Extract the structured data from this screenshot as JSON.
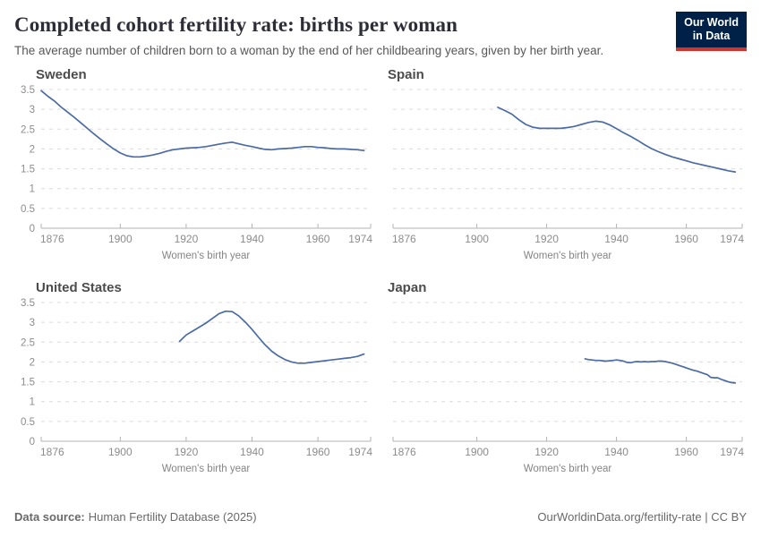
{
  "header": {
    "title": "Completed cohort fertility rate: births per woman",
    "subtitle": "The average number of children born to a woman by the end of her childbearing years, given by her birth year.",
    "logo": {
      "line1": "Our World",
      "line2": "in Data",
      "bg_color": "#002147",
      "accent_color": "#d0342c"
    }
  },
  "footer": {
    "datasource_label": "Data source:",
    "datasource_value": "Human Fertility Database (2025)",
    "link_text": "OurWorldinData.org/fertility-rate",
    "license_suffix": " | CC BY"
  },
  "theme": {
    "gridline_color": "#dcdcdc",
    "axis_color": "#b3b3b3",
    "tick_label_color": "#8c8c8c",
    "axis_title_color": "#858585",
    "panel_title_color": "#4c4c4c",
    "line_color": "#4b6ba5"
  },
  "chart_data": [
    {
      "type": "line",
      "title": "Sweden",
      "xlabel": "Women's birth year",
      "ylabel": "",
      "x_ticks": [
        1876,
        1900,
        1920,
        1940,
        1960,
        1974
      ],
      "y_ticks": [
        0,
        0.5,
        1,
        1.5,
        2,
        2.5,
        3,
        3.5
      ],
      "xlim": [
        1876,
        1976
      ],
      "ylim": [
        0,
        3.5
      ],
      "grid": true,
      "show_y_tick_labels": true,
      "line_color": "#4b6ba5",
      "series": [
        {
          "name": "Sweden",
          "points": [
            [
              1876,
              3.47
            ],
            [
              1878,
              3.33
            ],
            [
              1880,
              3.21
            ],
            [
              1882,
              3.06
            ],
            [
              1884,
              2.93
            ],
            [
              1886,
              2.8
            ],
            [
              1888,
              2.66
            ],
            [
              1890,
              2.52
            ],
            [
              1892,
              2.38
            ],
            [
              1894,
              2.25
            ],
            [
              1896,
              2.12
            ],
            [
              1898,
              2.0
            ],
            [
              1900,
              1.9
            ],
            [
              1902,
              1.83
            ],
            [
              1904,
              1.8
            ],
            [
              1906,
              1.8
            ],
            [
              1908,
              1.82
            ],
            [
              1910,
              1.85
            ],
            [
              1912,
              1.89
            ],
            [
              1914,
              1.94
            ],
            [
              1916,
              1.98
            ],
            [
              1918,
              2.0
            ],
            [
              1920,
              2.02
            ],
            [
              1922,
              2.03
            ],
            [
              1924,
              2.04
            ],
            [
              1926,
              2.06
            ],
            [
              1928,
              2.09
            ],
            [
              1930,
              2.12
            ],
            [
              1932,
              2.15
            ],
            [
              1934,
              2.17
            ],
            [
              1936,
              2.13
            ],
            [
              1938,
              2.09
            ],
            [
              1940,
              2.06
            ],
            [
              1942,
              2.02
            ],
            [
              1944,
              1.99
            ],
            [
              1946,
              1.98
            ],
            [
              1948,
              2.0
            ],
            [
              1950,
              2.01
            ],
            [
              1952,
              2.02
            ],
            [
              1954,
              2.04
            ],
            [
              1956,
              2.06
            ],
            [
              1958,
              2.06
            ],
            [
              1960,
              2.04
            ],
            [
              1962,
              2.03
            ],
            [
              1964,
              2.01
            ],
            [
              1966,
              2.0
            ],
            [
              1968,
              2.0
            ],
            [
              1970,
              1.99
            ],
            [
              1972,
              1.98
            ],
            [
              1974,
              1.96
            ]
          ]
        }
      ]
    },
    {
      "type": "line",
      "title": "Spain",
      "xlabel": "Women's birth year",
      "ylabel": "",
      "x_ticks": [
        1876,
        1900,
        1920,
        1940,
        1960,
        1974
      ],
      "y_ticks": [
        0,
        0.5,
        1,
        1.5,
        2,
        2.5,
        3,
        3.5
      ],
      "xlim": [
        1876,
        1976
      ],
      "ylim": [
        0,
        3.5
      ],
      "grid": true,
      "show_y_tick_labels": false,
      "line_color": "#4b6ba5",
      "series": [
        {
          "name": "Spain",
          "points": [
            [
              1906,
              3.05
            ],
            [
              1908,
              2.97
            ],
            [
              1910,
              2.88
            ],
            [
              1912,
              2.74
            ],
            [
              1914,
              2.62
            ],
            [
              1916,
              2.55
            ],
            [
              1918,
              2.52
            ],
            [
              1920,
              2.52
            ],
            [
              1922,
              2.52
            ],
            [
              1924,
              2.52
            ],
            [
              1926,
              2.54
            ],
            [
              1928,
              2.57
            ],
            [
              1930,
              2.62
            ],
            [
              1932,
              2.67
            ],
            [
              1934,
              2.7
            ],
            [
              1936,
              2.68
            ],
            [
              1938,
              2.61
            ],
            [
              1940,
              2.51
            ],
            [
              1942,
              2.41
            ],
            [
              1944,
              2.32
            ],
            [
              1946,
              2.22
            ],
            [
              1948,
              2.11
            ],
            [
              1950,
              2.01
            ],
            [
              1952,
              1.93
            ],
            [
              1954,
              1.86
            ],
            [
              1956,
              1.8
            ],
            [
              1958,
              1.75
            ],
            [
              1960,
              1.7
            ],
            [
              1962,
              1.65
            ],
            [
              1964,
              1.61
            ],
            [
              1966,
              1.57
            ],
            [
              1968,
              1.53
            ],
            [
              1970,
              1.49
            ],
            [
              1972,
              1.45
            ],
            [
              1974,
              1.42
            ]
          ]
        }
      ]
    },
    {
      "type": "line",
      "title": "United States",
      "xlabel": "Women's birth year",
      "ylabel": "",
      "x_ticks": [
        1876,
        1900,
        1920,
        1940,
        1960,
        1974
      ],
      "y_ticks": [
        0,
        0.5,
        1,
        1.5,
        2,
        2.5,
        3,
        3.5
      ],
      "xlim": [
        1876,
        1976
      ],
      "ylim": [
        0,
        3.5
      ],
      "grid": true,
      "show_y_tick_labels": true,
      "line_color": "#4b6ba5",
      "series": [
        {
          "name": "United States",
          "points": [
            [
              1918,
              2.52
            ],
            [
              1920,
              2.68
            ],
            [
              1922,
              2.78
            ],
            [
              1924,
              2.88
            ],
            [
              1926,
              2.98
            ],
            [
              1928,
              3.1
            ],
            [
              1930,
              3.22
            ],
            [
              1932,
              3.28
            ],
            [
              1934,
              3.27
            ],
            [
              1936,
              3.16
            ],
            [
              1938,
              3.0
            ],
            [
              1940,
              2.82
            ],
            [
              1942,
              2.62
            ],
            [
              1944,
              2.43
            ],
            [
              1946,
              2.27
            ],
            [
              1948,
              2.15
            ],
            [
              1950,
              2.06
            ],
            [
              1952,
              2.0
            ],
            [
              1954,
              1.97
            ],
            [
              1956,
              1.97
            ],
            [
              1958,
              1.99
            ],
            [
              1960,
              2.01
            ],
            [
              1962,
              2.03
            ],
            [
              1964,
              2.05
            ],
            [
              1966,
              2.07
            ],
            [
              1968,
              2.09
            ],
            [
              1970,
              2.11
            ],
            [
              1972,
              2.14
            ],
            [
              1974,
              2.2
            ]
          ]
        }
      ]
    },
    {
      "type": "line",
      "title": "Japan",
      "xlabel": "Women's birth year",
      "ylabel": "",
      "x_ticks": [
        1876,
        1900,
        1920,
        1940,
        1960,
        1974
      ],
      "y_ticks": [
        0,
        0.5,
        1,
        1.5,
        2,
        2.5,
        3,
        3.5
      ],
      "xlim": [
        1876,
        1976
      ],
      "ylim": [
        0,
        3.5
      ],
      "grid": true,
      "show_y_tick_labels": false,
      "line_color": "#4b6ba5",
      "series": [
        {
          "name": "Japan",
          "points": [
            [
              1931,
              2.08
            ],
            [
              1932,
              2.06
            ],
            [
              1933,
              2.05
            ],
            [
              1934,
              2.04
            ],
            [
              1935,
              2.04
            ],
            [
              1936,
              2.03
            ],
            [
              1937,
              2.02
            ],
            [
              1938,
              2.03
            ],
            [
              1939,
              2.04
            ],
            [
              1940,
              2.05
            ],
            [
              1941,
              2.04
            ],
            [
              1942,
              2.02
            ],
            [
              1943,
              1.99
            ],
            [
              1944,
              1.98
            ],
            [
              1945,
              2.0
            ],
            [
              1946,
              2.01
            ],
            [
              1947,
              2.0
            ],
            [
              1948,
              2.01
            ],
            [
              1949,
              2.0
            ],
            [
              1950,
              2.01
            ],
            [
              1951,
              2.01
            ],
            [
              1952,
              2.02
            ],
            [
              1953,
              2.02
            ],
            [
              1954,
              2.01
            ],
            [
              1955,
              1.99
            ],
            [
              1956,
              1.97
            ],
            [
              1957,
              1.94
            ],
            [
              1958,
              1.91
            ],
            [
              1959,
              1.88
            ],
            [
              1960,
              1.85
            ],
            [
              1961,
              1.82
            ],
            [
              1962,
              1.79
            ],
            [
              1963,
              1.77
            ],
            [
              1964,
              1.74
            ],
            [
              1965,
              1.71
            ],
            [
              1966,
              1.68
            ],
            [
              1967,
              1.61
            ],
            [
              1968,
              1.6
            ],
            [
              1969,
              1.6
            ],
            [
              1970,
              1.56
            ],
            [
              1971,
              1.53
            ],
            [
              1972,
              1.5
            ],
            [
              1973,
              1.48
            ],
            [
              1974,
              1.47
            ]
          ]
        }
      ]
    }
  ]
}
